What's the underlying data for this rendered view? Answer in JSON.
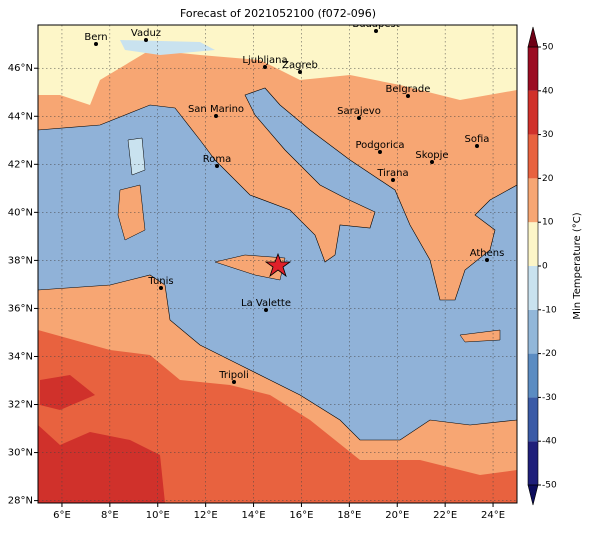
{
  "title": "Forecast of 2021052100 (f072-096)",
  "map": {
    "xlim": [
      5,
      25
    ],
    "ylim": [
      27.9,
      47.8
    ],
    "xticks": [
      {
        "value": 6,
        "label": "6°E"
      },
      {
        "value": 8,
        "label": "8°E"
      },
      {
        "value": 10,
        "label": "10°E"
      },
      {
        "value": 12,
        "label": "12°E"
      },
      {
        "value": 14,
        "label": "14°E"
      },
      {
        "value": 16,
        "label": "16°E"
      },
      {
        "value": 18,
        "label": "18°E"
      },
      {
        "value": 20,
        "label": "20°E"
      },
      {
        "value": 22,
        "label": "22°E"
      },
      {
        "value": 24,
        "label": "24°E"
      }
    ],
    "yticks": [
      {
        "value": 28,
        "label": "28°N"
      },
      {
        "value": 30,
        "label": "30°N"
      },
      {
        "value": 32,
        "label": "32°N"
      },
      {
        "value": 34,
        "label": "34°N"
      },
      {
        "value": 36,
        "label": "36°N"
      },
      {
        "value": 38,
        "label": "38°N"
      },
      {
        "value": 40,
        "label": "40°N"
      },
      {
        "value": 42,
        "label": "42°N"
      },
      {
        "value": 44,
        "label": "44°N"
      },
      {
        "value": 46,
        "label": "46°N"
      }
    ],
    "grid": true,
    "cities": [
      "Bern",
      "Vaduz",
      "Budapest",
      "Ljubljana",
      "Zagreb",
      "Belgrade",
      "San Marino",
      "Sarajevo",
      "Sofia",
      "Podgorica",
      "Skopje",
      "Roma",
      "Tirana",
      "Athens",
      "Tunis",
      "La Valette",
      "Tripoli"
    ]
  },
  "colorbar": {
    "label": "Min Temperature (°C)",
    "lim": [
      -50,
      50
    ],
    "ticks": [
      -50,
      -40,
      -30,
      -20,
      -10,
      0,
      10,
      20,
      30,
      40,
      50
    ],
    "colors": [
      "#1f1f7a",
      "#3a5aa6",
      "#5b8cc2",
      "#92b7d9",
      "#c9e2ef",
      "#fdf6c8",
      "#f7a673",
      "#e8623f",
      "#d0312b",
      "#9b0c22"
    ],
    "under_color": "#0d0d5c",
    "over_color": "#6e0015"
  }
}
